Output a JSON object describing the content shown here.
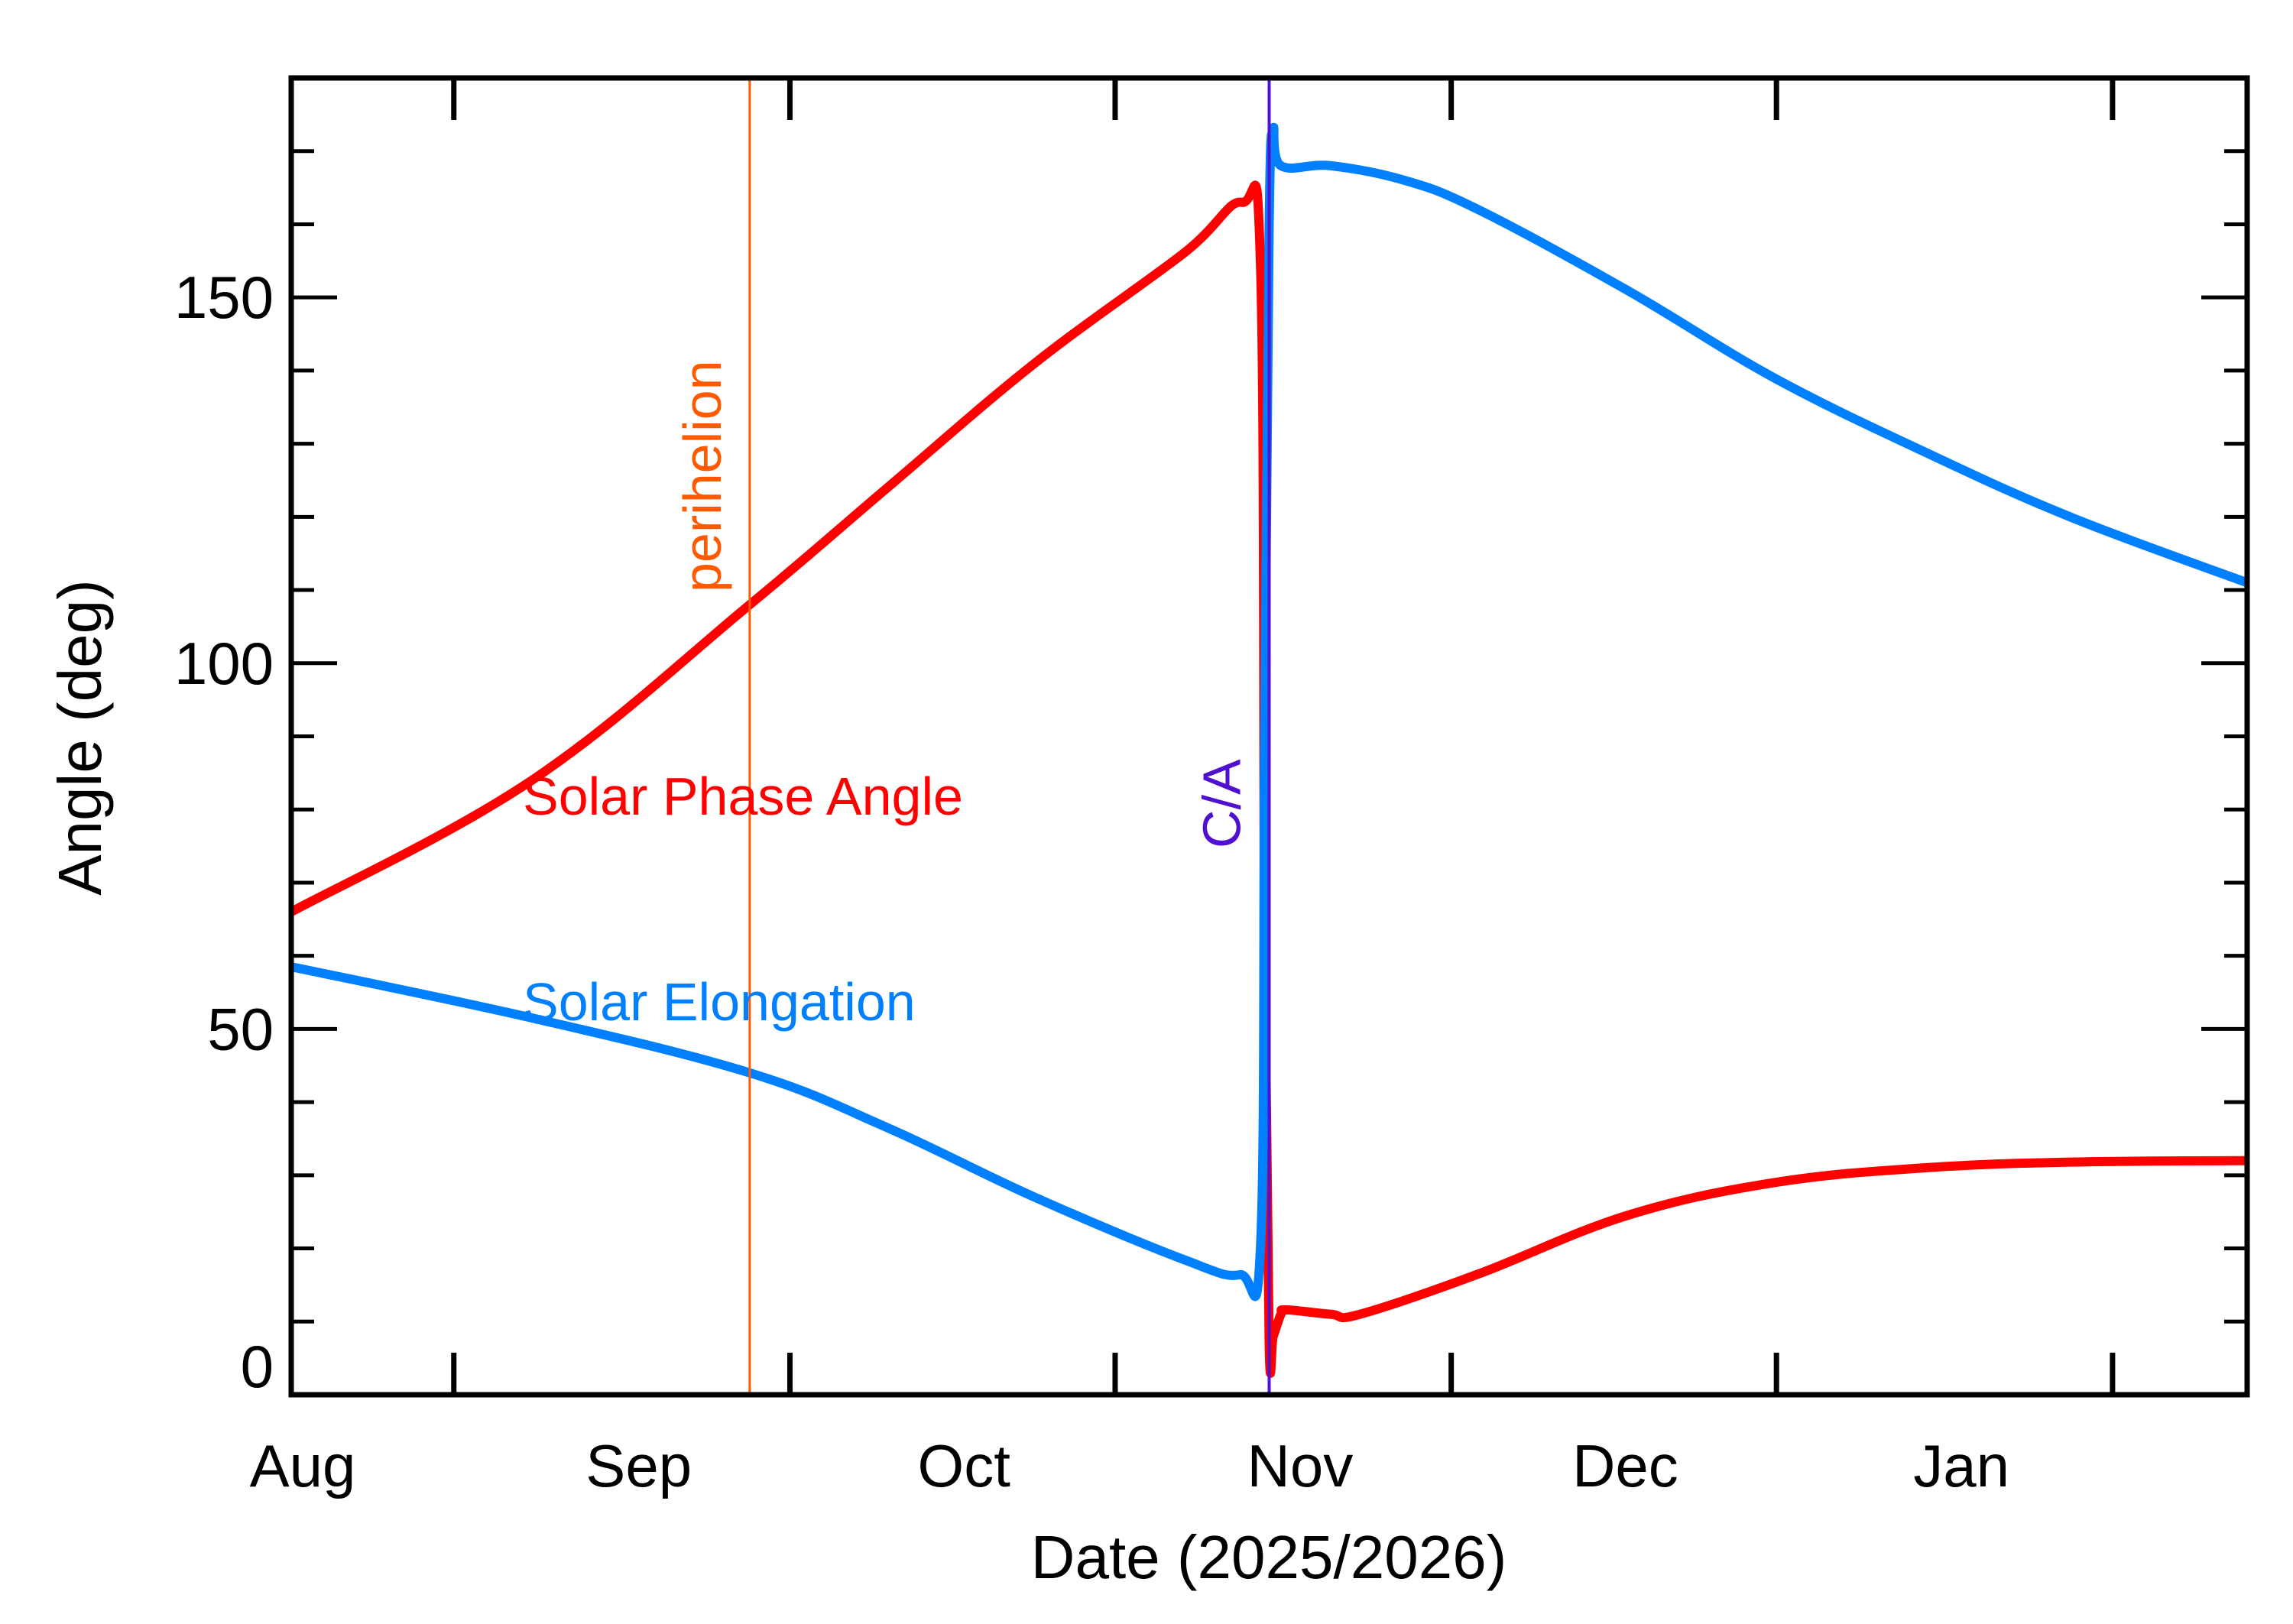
{
  "chart_data": {
    "type": "line",
    "title": "",
    "xlabel": "Date (2025/2026)",
    "ylabel": "Angle (deg)",
    "xlim": [
      "2025-08-01T00:00",
      "2026-01-28T10:00"
    ],
    "ylim": [
      0,
      180
    ],
    "grid": false,
    "x_tick_labels": [
      {
        "date": "2025-08-01",
        "label": "Aug"
      },
      {
        "date": "2025-09-01",
        "label": "Sep"
      },
      {
        "date": "2025-10-01",
        "label": "Oct"
      },
      {
        "date": "2025-11-01",
        "label": "Nov"
      },
      {
        "date": "2025-12-01",
        "label": "Dec"
      },
      {
        "date": "2026-01-01",
        "label": "Jan"
      }
    ],
    "y_ticks": [
      0,
      50,
      100,
      150
    ],
    "y_tick_labels": [
      "0",
      "50",
      "100",
      "150"
    ],
    "markers": [
      {
        "label": "perihelion",
        "date": "2025-09-12T07:00",
        "color": "#ff5a00"
      },
      {
        "label": "C/A",
        "date": "2025-10-30T05:00",
        "color": "#5010d0"
      }
    ],
    "series": [
      {
        "name": "Solar Phase Angle",
        "color": "#ff0000",
        "x": [
          "2025-08-01T00:00",
          "2025-08-23T05:00",
          "2025-09-12T07:00",
          "2025-09-25T00:00",
          "2025-10-08T14:00",
          "2025-10-22T07:00",
          "2025-10-27T17:00",
          "2025-10-29T10:00",
          "2025-10-29T19:00",
          "2025-10-30T05:00",
          "2025-10-30T14:00",
          "2025-10-31T07:00",
          "2025-10-31T19:00",
          "2025-11-04T22:00",
          "2025-11-07T14:00",
          "2025-11-18T12:00",
          "2025-12-02T05:00",
          "2025-12-15T19:00",
          "2025-12-29T12:00",
          "2026-01-12T02:00",
          "2026-01-28T10:00"
        ],
        "y": [
          66,
          84,
          108,
          124,
          141,
          156,
          163,
          154,
          60,
          7,
          8,
          11,
          11.6,
          11,
          11,
          16.5,
          24.5,
          29,
          31,
          31.8,
          32
        ]
      },
      {
        "name": "Solar Elongation",
        "color": "#0080ff",
        "x": [
          "2025-08-01T00:00",
          "2025-08-23T05:00",
          "2025-09-12T07:00",
          "2025-09-25T00:00",
          "2025-10-08T14:00",
          "2025-10-22T07:00",
          "2025-10-27T12:00",
          "2025-10-29T10:00",
          "2025-10-29T19:00",
          "2025-10-30T05:00",
          "2025-10-30T14:00",
          "2025-10-31T07:00",
          "2025-11-04T22:00",
          "2025-11-11T17:00",
          "2025-11-18T12:00",
          "2025-12-02T05:00",
          "2025-12-15T19:00",
          "2025-12-29T12:00",
          "2026-01-12T02:00",
          "2026-01-28T10:00"
        ],
        "y": [
          58.5,
          51.5,
          44,
          36.5,
          27,
          18.5,
          16.4,
          20.5,
          90,
          160,
          173,
          168,
          168,
          166,
          162,
          151,
          139,
          129,
          120,
          111
        ]
      }
    ]
  }
}
